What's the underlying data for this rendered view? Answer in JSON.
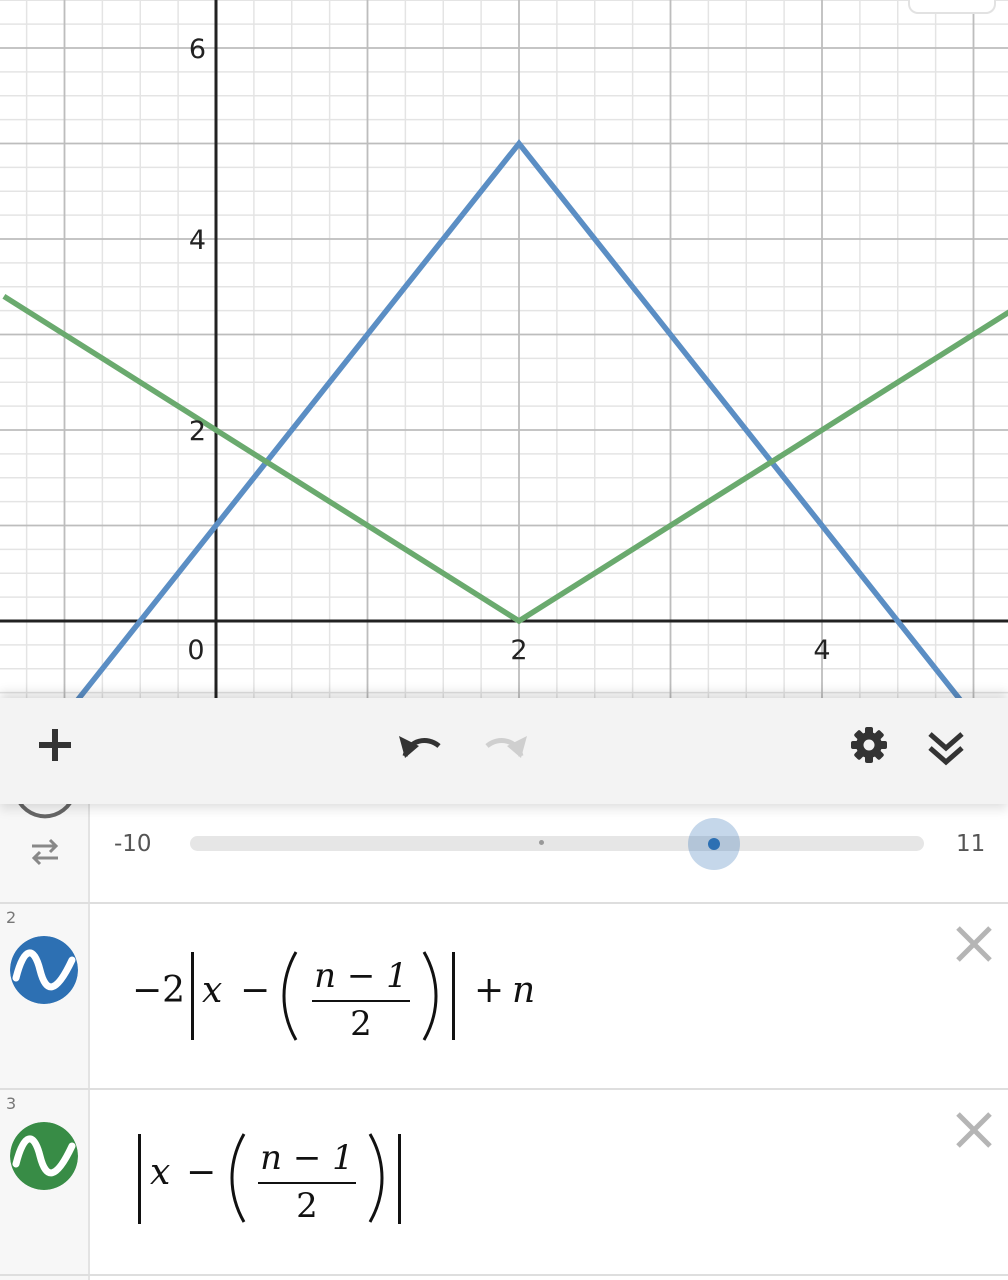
{
  "graph": {
    "x_ticks": [
      {
        "value": 0,
        "label": "0"
      },
      {
        "value": 2,
        "label": "2"
      },
      {
        "value": 4,
        "label": "4"
      }
    ],
    "y_ticks": [
      {
        "value": 2,
        "label": "2"
      },
      {
        "value": 4,
        "label": "4"
      },
      {
        "value": 6,
        "label": "6"
      }
    ],
    "colors": {
      "blue": "#5b8ec4",
      "green": "#6aaa6e",
      "grid_major": "#bdbdbd",
      "grid_minor": "#e4e4e4",
      "axis": "#222222"
    }
  },
  "chart_data": {
    "type": "line",
    "title": "",
    "xlabel": "",
    "ylabel": "",
    "xlim": [
      -1.4,
      5.3
    ],
    "ylim": [
      -0.4,
      6.5
    ],
    "grid": true,
    "series": [
      {
        "color": "#5b8ec4",
        "x": [
          -1.4,
          2,
          5.3
        ],
        "y": [
          -1.8,
          5,
          -1.6
        ]
      },
      {
        "color": "#6aaa6e",
        "x": [
          -1.4,
          2,
          5.3
        ],
        "y": [
          3.4,
          0,
          3.3
        ]
      }
    ]
  },
  "toolbar": {
    "add_icon": "plus-icon",
    "undo_icon": "undo-icon",
    "redo_icon": "redo-icon",
    "settings_icon": "gear-icon",
    "collapse_icon": "double-chevron-down-icon"
  },
  "slider": {
    "min_label": "-10",
    "max_label": "11",
    "value": 5,
    "min": -10,
    "max": 11
  },
  "expressions": [
    {
      "number": "2",
      "color": "#2d70b3",
      "prefix": "−2",
      "x": "x",
      "minus": "−",
      "numerator": "n − 1",
      "denominator": "2",
      "suffix_op": "+",
      "suffix_var": "n"
    },
    {
      "number": "3",
      "color": "#388c46",
      "x": "x",
      "minus": "−",
      "numerator": "n − 1",
      "denominator": "2"
    }
  ]
}
